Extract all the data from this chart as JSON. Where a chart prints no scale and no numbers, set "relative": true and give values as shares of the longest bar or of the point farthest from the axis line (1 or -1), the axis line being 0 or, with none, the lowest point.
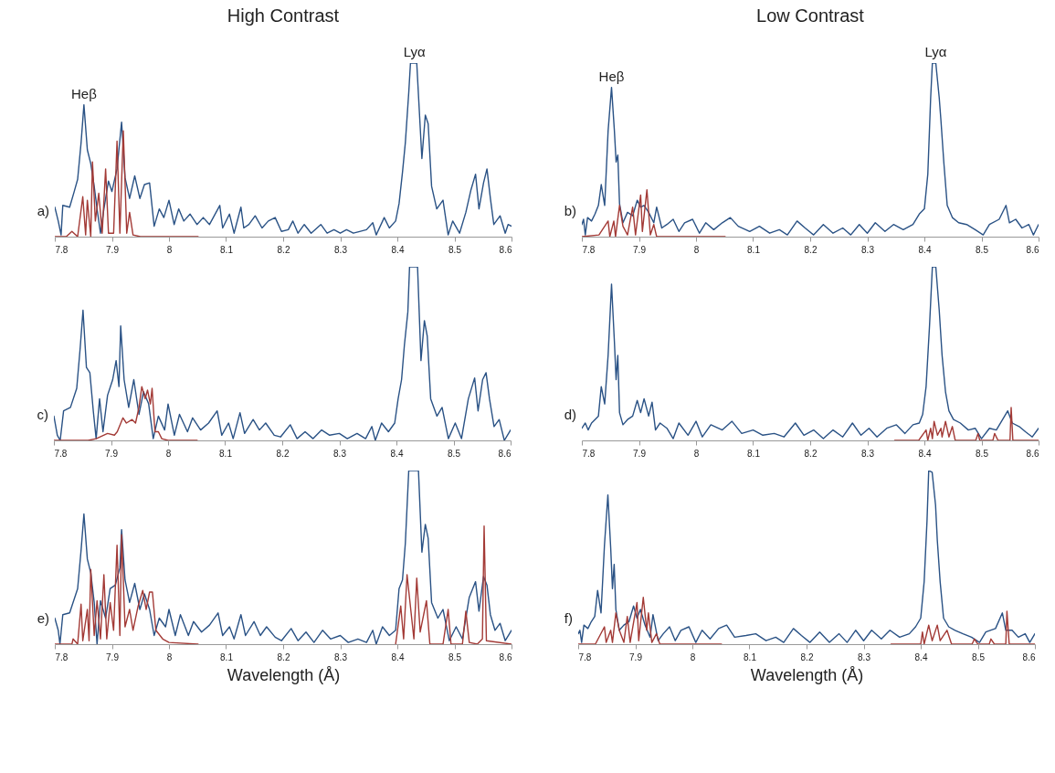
{
  "chart_data": [
    {
      "type": "line",
      "title": "High Contrast",
      "relative": true,
      "xlim": [
        7.8,
        8.6
      ],
      "xticks": [
        7.8,
        7.9,
        8,
        8.1,
        8.2,
        8.3,
        8.4,
        8.5,
        8.6
      ],
      "annotations": [
        "a)",
        {
          "text": "Heβ",
          "x": 7.851,
          "y": 0.76
        },
        {
          "text": "Lyα",
          "x": 8.43,
          "y": 1
        }
      ],
      "series": [
        {
          "color": "#2a5285",
          "x": [
            7.8,
            7.806,
            7.811,
            7.814,
            7.826,
            7.834,
            7.84,
            7.846,
            7.851,
            7.857,
            7.863,
            7.869,
            7.874,
            7.88,
            7.886,
            7.894,
            7.9,
            7.909,
            7.917,
            7.923,
            7.931,
            7.94,
            7.949,
            7.957,
            7.966,
            7.974,
            7.983,
            7.991,
            8.0,
            8.009,
            8.017,
            8.026,
            8.037,
            8.049,
            8.06,
            8.071,
            8.089,
            8.094,
            8.106,
            8.114,
            8.126,
            8.131,
            8.14,
            8.151,
            8.163,
            8.174,
            8.186,
            8.197,
            8.209,
            8.217,
            8.226,
            8.237,
            8.249,
            8.266,
            8.277,
            8.289,
            8.3,
            8.311,
            8.323,
            8.334,
            8.346,
            8.357,
            8.363,
            8.377,
            8.386,
            8.397,
            8.403,
            8.409,
            8.414,
            8.42,
            8.423,
            8.434,
            8.443,
            8.449,
            8.454,
            8.46,
            8.469,
            8.48,
            8.489,
            8.497,
            8.509,
            8.52,
            8.529,
            8.537,
            8.543,
            8.551,
            8.557,
            8.563,
            8.569,
            8.58,
            8.589,
            8.594,
            8.6
          ],
          "values": [
            0.17,
            0.09,
            0.01,
            0.18,
            0.17,
            0.26,
            0.33,
            0.54,
            0.76,
            0.5,
            0.42,
            0.29,
            0.16,
            0.02,
            0.16,
            0.32,
            0.26,
            0.39,
            0.66,
            0.34,
            0.22,
            0.35,
            0.22,
            0.3,
            0.31,
            0.06,
            0.16,
            0.11,
            0.21,
            0.07,
            0.16,
            0.09,
            0.13,
            0.07,
            0.11,
            0.07,
            0.18,
            0.05,
            0.13,
            0.02,
            0.17,
            0.05,
            0.07,
            0.12,
            0.05,
            0.09,
            0.11,
            0.03,
            0.04,
            0.09,
            0.02,
            0.07,
            0.02,
            0.07,
            0.02,
            0.04,
            0.02,
            0.04,
            0.02,
            0.03,
            0.04,
            0.08,
            0.01,
            0.11,
            0.05,
            0.09,
            0.19,
            0.37,
            0.54,
            0.83,
            1,
            1,
            0.45,
            0.7,
            0.65,
            0.29,
            0.16,
            0.21,
            0.01,
            0.09,
            0.02,
            0.14,
            0.27,
            0.36,
            0.16,
            0.31,
            0.39,
            0.22,
            0.07,
            0.12,
            0.02,
            0.07,
            0.06
          ]
        },
        {
          "color": "#a33a36",
          "x": [
            7.8,
            7.82,
            7.83,
            7.84,
            7.849,
            7.854,
            7.857,
            7.863,
            7.866,
            7.871,
            7.877,
            7.883,
            7.889,
            7.894,
            7.903,
            7.909,
            7.914,
            7.92,
            7.926,
            7.931,
            7.937,
            7.95,
            8.0,
            8.051
          ],
          "values": [
            0,
            0,
            0.03,
            0,
            0.23,
            0.01,
            0.21,
            0,
            0.43,
            0.09,
            0.25,
            0.02,
            0.39,
            0.02,
            0.02,
            0.55,
            0.02,
            0.61,
            0.02,
            0.14,
            0.01,
            0,
            0,
            0
          ]
        }
      ]
    },
    {
      "type": "line",
      "title": "Low Contrast",
      "relative": true,
      "xlim": [
        7.8,
        8.6
      ],
      "xticks": [
        7.8,
        7.9,
        8,
        8.1,
        8.2,
        8.3,
        8.4,
        8.5,
        8.6
      ],
      "annotations": [
        "b)",
        {
          "text": "Heβ",
          "x": 7.852,
          "y": 0.86
        },
        {
          "text": "Lyα",
          "x": 8.42,
          "y": 1
        }
      ],
      "series": [
        {
          "color": "#2a5285",
          "x": [
            7.8,
            7.803,
            7.806,
            7.81,
            7.817,
            7.823,
            7.829,
            7.834,
            7.84,
            7.846,
            7.852,
            7.857,
            7.86,
            7.863,
            7.866,
            7.872,
            7.88,
            7.889,
            7.897,
            7.903,
            7.909,
            7.917,
            7.926,
            7.931,
            7.94,
            7.949,
            7.96,
            7.97,
            7.98,
            7.994,
            8.006,
            8.017,
            8.031,
            8.046,
            8.06,
            8.074,
            8.094,
            8.111,
            8.129,
            8.146,
            8.16,
            8.177,
            8.191,
            8.206,
            8.223,
            8.24,
            8.257,
            8.271,
            8.286,
            8.3,
            8.314,
            8.331,
            8.346,
            8.363,
            8.38,
            8.391,
            8.4,
            8.406,
            8.411,
            8.414,
            8.42,
            8.426,
            8.429,
            8.434,
            8.44,
            8.449,
            8.46,
            8.474,
            8.489,
            8.503,
            8.514,
            8.531,
            8.543,
            8.549,
            8.56,
            8.571,
            8.583,
            8.591,
            8.6
          ],
          "values": [
            0.07,
            0.1,
            0.01,
            0.11,
            0.09,
            0.13,
            0.18,
            0.3,
            0.18,
            0.61,
            0.86,
            0.61,
            0.43,
            0.47,
            0.19,
            0.08,
            0.14,
            0.12,
            0.21,
            0.17,
            0.18,
            0.14,
            0.08,
            0.17,
            0.05,
            0.07,
            0.1,
            0.03,
            0.08,
            0.1,
            0.02,
            0.08,
            0.04,
            0.08,
            0.11,
            0.06,
            0.03,
            0.06,
            0.02,
            0.04,
            0.01,
            0.09,
            0.05,
            0.01,
            0.07,
            0.02,
            0.05,
            0.01,
            0.07,
            0.02,
            0.08,
            0.03,
            0.07,
            0.04,
            0.07,
            0.13,
            0.16,
            0.36,
            0.8,
            1,
            1,
            0.8,
            0.67,
            0.43,
            0.18,
            0.11,
            0.08,
            0.07,
            0.04,
            0.01,
            0.07,
            0.1,
            0.18,
            0.08,
            0.1,
            0.05,
            0.07,
            0.01,
            0.07
          ]
        },
        {
          "color": "#a33a36",
          "x": [
            7.8,
            7.83,
            7.846,
            7.849,
            7.856,
            7.859,
            7.866,
            7.872,
            7.88,
            7.889,
            7.894,
            7.903,
            7.906,
            7.914,
            7.92,
            7.926,
            7.931,
            7.95,
            8.0,
            8.051
          ],
          "values": [
            0,
            0.01,
            0.09,
            0,
            0.09,
            0,
            0.18,
            0.06,
            0.01,
            0.17,
            0.01,
            0.24,
            0.03,
            0.27,
            0.01,
            0.07,
            0,
            0,
            0,
            0
          ]
        }
      ]
    },
    {
      "type": "line",
      "relative": true,
      "xlim": [
        7.8,
        8.6
      ],
      "xticks": [
        7.8,
        7.9,
        8,
        8.1,
        8.2,
        8.3,
        8.4,
        8.5,
        8.6
      ],
      "annotations": [
        "c)"
      ],
      "series": [
        {
          "color": "#2a5285",
          "x": [
            7.8,
            7.806,
            7.811,
            7.817,
            7.829,
            7.84,
            7.846,
            7.851,
            7.857,
            7.863,
            7.869,
            7.874,
            7.88,
            7.886,
            7.894,
            7.903,
            7.909,
            7.914,
            7.917,
            7.923,
            7.931,
            7.94,
            7.949,
            7.957,
            7.966,
            7.974,
            7.983,
            7.994,
            8.0,
            8.011,
            8.02,
            8.034,
            8.043,
            8.057,
            8.071,
            8.086,
            8.094,
            8.106,
            8.114,
            8.126,
            8.134,
            8.149,
            8.16,
            8.171,
            8.186,
            8.197,
            8.214,
            8.226,
            8.24,
            8.254,
            8.269,
            8.283,
            8.3,
            8.314,
            8.331,
            8.346,
            8.357,
            8.363,
            8.374,
            8.386,
            8.397,
            8.403,
            8.409,
            8.414,
            8.42,
            8.423,
            8.437,
            8.443,
            8.449,
            8.454,
            8.46,
            8.471,
            8.48,
            8.491,
            8.503,
            8.514,
            8.526,
            8.537,
            8.543,
            8.551,
            8.557,
            8.563,
            8.571,
            8.58,
            8.589,
            8.6
          ],
          "values": [
            0.14,
            0.03,
            0,
            0.17,
            0.19,
            0.3,
            0.53,
            0.75,
            0.42,
            0.39,
            0.17,
            0.01,
            0.24,
            0.05,
            0.26,
            0.35,
            0.46,
            0.31,
            0.66,
            0.35,
            0.19,
            0.35,
            0.15,
            0.28,
            0.21,
            0.01,
            0.14,
            0.06,
            0.21,
            0.03,
            0.15,
            0.05,
            0.13,
            0.06,
            0.1,
            0.17,
            0.03,
            0.1,
            0.01,
            0.16,
            0.04,
            0.12,
            0.06,
            0.1,
            0.03,
            0.02,
            0.09,
            0.01,
            0.05,
            0.01,
            0.06,
            0.03,
            0.04,
            0.01,
            0.04,
            0.01,
            0.08,
            0,
            0.1,
            0.05,
            0.1,
            0.24,
            0.35,
            0.55,
            0.74,
            1,
            1,
            0.46,
            0.69,
            0.6,
            0.24,
            0.14,
            0.19,
            0.01,
            0.1,
            0.01,
            0.24,
            0.36,
            0.17,
            0.35,
            0.39,
            0.24,
            0.08,
            0.12,
            0,
            0.06
          ]
        },
        {
          "color": "#a33a36",
          "x": [
            7.8,
            7.86,
            7.874,
            7.894,
            7.906,
            7.911,
            7.921,
            7.927,
            7.937,
            7.943,
            7.949,
            7.954,
            7.96,
            7.964,
            7.969,
            7.972,
            7.977,
            7.983,
            7.989,
            8.0,
            8.051
          ],
          "values": [
            0,
            0,
            0.01,
            0.04,
            0.03,
            0.05,
            0.13,
            0.1,
            0.12,
            0.1,
            0.19,
            0.31,
            0.24,
            0.29,
            0.21,
            0.3,
            0.05,
            0.05,
            0.01,
            0,
            0
          ]
        }
      ]
    },
    {
      "type": "line",
      "relative": true,
      "xlim": [
        7.8,
        8.6
      ],
      "xticks": [
        7.8,
        7.9,
        8,
        8.1,
        8.2,
        8.3,
        8.4,
        8.5,
        8.6
      ],
      "annotations": [
        "d)"
      ],
      "series": [
        {
          "color": "#2a5285",
          "x": [
            7.8,
            7.806,
            7.811,
            7.817,
            7.829,
            7.834,
            7.84,
            7.846,
            7.852,
            7.857,
            7.86,
            7.863,
            7.866,
            7.872,
            7.88,
            7.889,
            7.897,
            7.903,
            7.909,
            7.917,
            7.923,
            7.929,
            7.937,
            7.949,
            7.96,
            7.97,
            7.986,
            8.0,
            8.011,
            8.026,
            8.046,
            8.063,
            8.08,
            8.1,
            8.117,
            8.137,
            8.154,
            8.174,
            8.189,
            8.206,
            8.223,
            8.24,
            8.257,
            8.274,
            8.289,
            8.303,
            8.317,
            8.334,
            8.351,
            8.366,
            8.38,
            8.391,
            8.397,
            8.403,
            8.409,
            8.414,
            8.42,
            8.426,
            8.431,
            8.437,
            8.443,
            8.451,
            8.463,
            8.477,
            8.489,
            8.5,
            8.514,
            8.526,
            8.537,
            8.546,
            8.554,
            8.566,
            8.577,
            8.589,
            8.6
          ],
          "values": [
            0.07,
            0.1,
            0.06,
            0.1,
            0.14,
            0.31,
            0.21,
            0.49,
            0.9,
            0.57,
            0.35,
            0.49,
            0.16,
            0.09,
            0.12,
            0.14,
            0.23,
            0.16,
            0.24,
            0.14,
            0.22,
            0.06,
            0.1,
            0.07,
            0.01,
            0.1,
            0.03,
            0.11,
            0.02,
            0.09,
            0.06,
            0.11,
            0.04,
            0.06,
            0.03,
            0.04,
            0.02,
            0.1,
            0.03,
            0.06,
            0.01,
            0.06,
            0.02,
            0.1,
            0.03,
            0.07,
            0.02,
            0.07,
            0.09,
            0.04,
            0.09,
            0.1,
            0.15,
            0.31,
            0.66,
            1,
            1,
            0.75,
            0.49,
            0.28,
            0.17,
            0.12,
            0.1,
            0.06,
            0.07,
            0.01,
            0.07,
            0.06,
            0.12,
            0.17,
            0.1,
            0.08,
            0.05,
            0.02,
            0.07
          ]
        },
        {
          "color": "#a33a36",
          "x": [
            8.348,
            8.39,
            8.403,
            8.406,
            8.411,
            8.414,
            8.417,
            8.423,
            8.429,
            8.431,
            8.437,
            8.443,
            8.449,
            8.454,
            8.49,
            8.494,
            8.497,
            8.52,
            8.523,
            8.529,
            8.55,
            8.552,
            8.555,
            8.6
          ],
          "values": [
            0,
            0,
            0.06,
            0,
            0.07,
            0.01,
            0.11,
            0.03,
            0.07,
            0.02,
            0.11,
            0.02,
            0.08,
            0,
            0,
            0.04,
            0,
            0,
            0.04,
            0,
            0,
            0.19,
            0,
            0
          ]
        }
      ]
    },
    {
      "type": "line",
      "relative": true,
      "xlim": [
        7.8,
        8.6
      ],
      "xticks": [
        7.8,
        7.9,
        8,
        8.1,
        8.2,
        8.3,
        8.4,
        8.5,
        8.6
      ],
      "xlabel": "Wavelength (Å)",
      "annotations": [
        "e)"
      ],
      "series": [
        {
          "color": "#2a5285",
          "x": [
            7.8,
            7.806,
            7.809,
            7.814,
            7.826,
            7.84,
            7.846,
            7.851,
            7.857,
            7.863,
            7.869,
            7.874,
            7.88,
            7.889,
            7.897,
            7.906,
            7.914,
            7.917,
            7.923,
            7.931,
            7.94,
            7.949,
            7.957,
            7.966,
            7.974,
            7.983,
            7.994,
            8.0,
            8.011,
            8.02,
            8.034,
            8.043,
            8.057,
            8.071,
            8.086,
            8.094,
            8.106,
            8.114,
            8.126,
            8.134,
            8.149,
            8.16,
            8.171,
            8.186,
            8.197,
            8.214,
            8.226,
            8.24,
            8.254,
            8.269,
            8.283,
            8.3,
            8.314,
            8.331,
            8.346,
            8.357,
            8.363,
            8.374,
            8.386,
            8.397,
            8.403,
            8.409,
            8.414,
            8.42,
            8.437,
            8.443,
            8.449,
            8.454,
            8.46,
            8.471,
            8.48,
            8.491,
            8.503,
            8.514,
            8.526,
            8.537,
            8.543,
            8.551,
            8.557,
            8.563,
            8.571,
            8.58,
            8.589,
            8.6
          ],
          "values": [
            0.15,
            0.08,
            0,
            0.17,
            0.18,
            0.32,
            0.54,
            0.75,
            0.49,
            0.41,
            0.24,
            0,
            0.25,
            0.15,
            0.32,
            0.34,
            0.44,
            0.66,
            0.37,
            0.24,
            0.35,
            0.2,
            0.29,
            0.2,
            0.05,
            0.15,
            0.1,
            0.2,
            0.05,
            0.17,
            0.05,
            0.13,
            0.07,
            0.11,
            0.18,
            0.05,
            0.1,
            0.03,
            0.17,
            0.05,
            0.13,
            0.05,
            0.1,
            0.04,
            0.02,
            0.09,
            0.02,
            0.07,
            0.01,
            0.08,
            0.03,
            0.05,
            0.01,
            0.03,
            0.01,
            0.08,
            0,
            0.1,
            0.05,
            0.08,
            0.32,
            0.37,
            0.58,
            1,
            1,
            0.53,
            0.69,
            0.61,
            0.24,
            0.15,
            0.2,
            0.02,
            0.1,
            0.03,
            0.27,
            0.36,
            0.19,
            0.39,
            0.34,
            0.17,
            0.08,
            0.12,
            0.02,
            0.08
          ]
        },
        {
          "color": "#a33a36",
          "x": [
            7.8,
            7.83,
            7.832,
            7.84,
            7.846,
            7.849,
            7.857,
            7.86,
            7.863,
            7.869,
            7.874,
            7.88,
            7.886,
            7.891,
            7.897,
            7.903,
            7.909,
            7.914,
            7.917,
            7.923,
            7.931,
            7.937,
            7.946,
            7.954,
            7.96,
            7.966,
            7.971,
            7.977,
            7.989,
            8.0,
            8.051,
            8.2,
            8.397,
            8.406,
            8.411,
            8.417,
            8.429,
            8.434,
            8.44,
            8.451,
            8.457,
            8.48,
            8.489,
            8.494,
            8.514,
            8.52,
            8.526,
            8.54,
            8.549,
            8.552,
            8.556,
            8.6
          ],
          "values": [
            0,
            0,
            0.03,
            0,
            0.23,
            0.02,
            0.2,
            0.02,
            0.43,
            0.05,
            0.25,
            0.03,
            0.4,
            0.03,
            0.24,
            0.08,
            0.57,
            0.05,
            0.63,
            0.1,
            0.2,
            0.08,
            0.22,
            0.31,
            0.2,
            0.3,
            0.3,
            0.08,
            0.03,
            0.01,
            0,
            null,
            0,
            0.22,
            0.03,
            0.4,
            0.03,
            0.38,
            0.07,
            0.25,
            0,
            0,
            0.2,
            0,
            0,
            0.19,
            0.01,
            0,
            0.03,
            0.68,
            0.02,
            0
          ]
        }
      ]
    },
    {
      "type": "line",
      "relative": true,
      "xlim": [
        7.8,
        8.6
      ],
      "xticks": [
        7.8,
        7.9,
        8,
        8.1,
        8.2,
        8.3,
        8.4,
        8.5,
        8.6
      ],
      "xlabel": "Wavelength (Å)",
      "annotations": [
        "f)"
      ],
      "series": [
        {
          "color": "#2a5285",
          "x": [
            7.8,
            7.803,
            7.806,
            7.81,
            7.817,
            7.823,
            7.829,
            7.834,
            7.84,
            7.846,
            7.852,
            7.857,
            7.86,
            7.863,
            7.866,
            7.872,
            7.88,
            7.889,
            7.897,
            7.903,
            7.909,
            7.917,
            7.926,
            7.931,
            7.94,
            7.949,
            7.96,
            7.97,
            7.98,
            7.994,
            8.006,
            8.017,
            8.031,
            8.046,
            8.06,
            8.074,
            8.094,
            8.111,
            8.129,
            8.146,
            8.16,
            8.177,
            8.191,
            8.206,
            8.223,
            8.24,
            8.257,
            8.271,
            8.286,
            8.3,
            8.314,
            8.331,
            8.346,
            8.363,
            8.38,
            8.391,
            8.4,
            8.406,
            8.411,
            8.414,
            8.42,
            8.426,
            8.429,
            8.434,
            8.44,
            8.449,
            8.46,
            8.474,
            8.489,
            8.503,
            8.514,
            8.531,
            8.543,
            8.549,
            8.56,
            8.571,
            8.583,
            8.591,
            8.6
          ],
          "values": [
            0.06,
            0.08,
            0.01,
            0.11,
            0.09,
            0.13,
            0.16,
            0.31,
            0.18,
            0.57,
            0.86,
            0.55,
            0.32,
            0.46,
            0.2,
            0.08,
            0.11,
            0.13,
            0.22,
            0.15,
            0.2,
            0.11,
            0.04,
            0.17,
            0.02,
            0.06,
            0.1,
            0.02,
            0.08,
            0.1,
            0.01,
            0.08,
            0.03,
            0.09,
            0.11,
            0.04,
            0.05,
            0.06,
            0.02,
            0.04,
            0.01,
            0.09,
            0.05,
            0.01,
            0.07,
            0.01,
            0.06,
            0.01,
            0.08,
            0.02,
            0.08,
            0.03,
            0.08,
            0.04,
            0.06,
            0.1,
            0.15,
            0.36,
            0.71,
            1,
            0.99,
            0.8,
            0.6,
            0.36,
            0.15,
            0.1,
            0.08,
            0.06,
            0.04,
            0.01,
            0.07,
            0.09,
            0.18,
            0.08,
            0.08,
            0.04,
            0.06,
            0.01,
            0.06
          ]
        },
        {
          "color": "#a33a36",
          "x": [
            7.8,
            7.83,
            7.846,
            7.849,
            7.857,
            7.86,
            7.866,
            7.872,
            7.88,
            7.886,
            7.891,
            7.903,
            7.906,
            7.914,
            7.92,
            7.923,
            7.929,
            7.937,
            7.943,
            8.051,
            8.2,
            8.348,
            8.4,
            8.403,
            8.406,
            8.414,
            8.42,
            8.429,
            8.434,
            8.446,
            8.454,
            8.49,
            8.494,
            8.5,
            8.52,
            8.523,
            8.529,
            8.549,
            8.551,
            8.555,
            8.6
          ],
          "values": [
            0,
            0,
            0.1,
            0.01,
            0.08,
            0.01,
            0.18,
            0.08,
            0.01,
            0.16,
            0.01,
            0.24,
            0.02,
            0.27,
            0.08,
            0.18,
            0.01,
            0.06,
            0,
            0,
            null,
            0,
            0,
            0.07,
            0,
            0.11,
            0.02,
            0.11,
            0.02,
            0.08,
            0,
            0,
            0.03,
            0,
            0,
            0.03,
            0,
            0,
            0.19,
            0,
            0
          ]
        }
      ]
    }
  ]
}
